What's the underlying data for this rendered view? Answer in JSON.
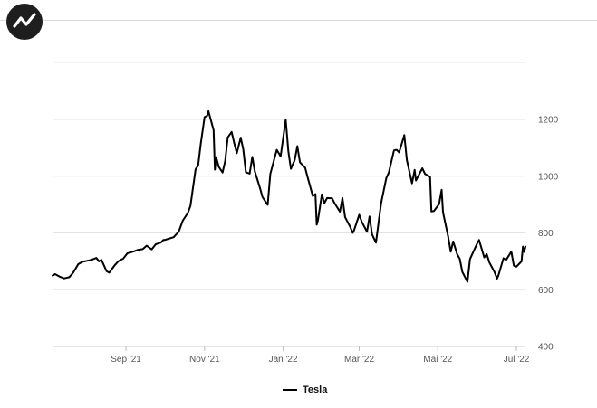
{
  "brand": {
    "logo_icon": "stock-trend-icon",
    "color": "#1e1e1e"
  },
  "chart_data": {
    "type": "line",
    "title": "",
    "xlabel": "",
    "ylabel": "",
    "x_ticks": [
      "Sep '21",
      "Nov '21",
      "Jan '22",
      "Mär '22",
      "Mai '22",
      "Jul '22"
    ],
    "y_ticks": [
      400,
      600,
      800,
      1000,
      1200
    ],
    "ylim": [
      400,
      1200
    ],
    "xlim": [
      "2021-07-06",
      "2022-07-08"
    ],
    "grid": true,
    "legend_position": "bottom-center",
    "series": [
      {
        "name": "Tesla",
        "color": "#000000",
        "points": [
          [
            "2021-07-06",
            650
          ],
          [
            "2021-07-08",
            655
          ],
          [
            "2021-07-12",
            645
          ],
          [
            "2021-07-15",
            640
          ],
          [
            "2021-07-19",
            644
          ],
          [
            "2021-07-22",
            660
          ],
          [
            "2021-07-26",
            690
          ],
          [
            "2021-07-29",
            698
          ],
          [
            "2021-08-02",
            702
          ],
          [
            "2021-08-05",
            705
          ],
          [
            "2021-08-09",
            712
          ],
          [
            "2021-08-11",
            700
          ],
          [
            "2021-08-13",
            705
          ],
          [
            "2021-08-17",
            665
          ],
          [
            "2021-08-19",
            660
          ],
          [
            "2021-08-23",
            685
          ],
          [
            "2021-08-26",
            700
          ],
          [
            "2021-08-30",
            710
          ],
          [
            "2021-09-02",
            728
          ],
          [
            "2021-09-07",
            735
          ],
          [
            "2021-09-10",
            740
          ],
          [
            "2021-09-14",
            743
          ],
          [
            "2021-09-17",
            755
          ],
          [
            "2021-09-21",
            742
          ],
          [
            "2021-09-24",
            760
          ],
          [
            "2021-09-28",
            766
          ],
          [
            "2021-09-30",
            775
          ],
          [
            "2021-10-01",
            775
          ],
          [
            "2021-10-05",
            781
          ],
          [
            "2021-10-08",
            785
          ],
          [
            "2021-10-12",
            805
          ],
          [
            "2021-10-15",
            843
          ],
          [
            "2021-10-19",
            870
          ],
          [
            "2021-10-21",
            895
          ],
          [
            "2021-10-25",
            1024
          ],
          [
            "2021-10-27",
            1037
          ],
          [
            "2021-10-29",
            1114
          ],
          [
            "2021-11-01",
            1208
          ],
          [
            "2021-11-03",
            1213
          ],
          [
            "2021-11-04",
            1229
          ],
          [
            "2021-11-08",
            1162
          ],
          [
            "2021-11-09",
            1023
          ],
          [
            "2021-11-10",
            1067
          ],
          [
            "2021-11-12",
            1033
          ],
          [
            "2021-11-15",
            1013
          ],
          [
            "2021-11-17",
            1054
          ],
          [
            "2021-11-19",
            1137
          ],
          [
            "2021-11-22",
            1156
          ],
          [
            "2021-11-24",
            1116
          ],
          [
            "2021-11-26",
            1081
          ],
          [
            "2021-11-29",
            1136
          ],
          [
            "2021-12-01",
            1095
          ],
          [
            "2021-12-03",
            1014
          ],
          [
            "2021-12-06",
            1009
          ],
          [
            "2021-12-08",
            1068
          ],
          [
            "2021-12-10",
            1017
          ],
          [
            "2021-12-14",
            958
          ],
          [
            "2021-12-16",
            926
          ],
          [
            "2021-12-20",
            899
          ],
          [
            "2021-12-22",
            1008
          ],
          [
            "2021-12-27",
            1093
          ],
          [
            "2021-12-30",
            1070
          ],
          [
            "2022-01-03",
            1199
          ],
          [
            "2022-01-05",
            1088
          ],
          [
            "2022-01-07",
            1026
          ],
          [
            "2022-01-10",
            1058
          ],
          [
            "2022-01-12",
            1106
          ],
          [
            "2022-01-14",
            1049
          ],
          [
            "2022-01-18",
            1030
          ],
          [
            "2022-01-20",
            996
          ],
          [
            "2022-01-24",
            930
          ],
          [
            "2022-01-26",
            937
          ],
          [
            "2022-01-27",
            829
          ],
          [
            "2022-01-28",
            846
          ],
          [
            "2022-01-31",
            936
          ],
          [
            "2022-02-02",
            905
          ],
          [
            "2022-02-04",
            923
          ],
          [
            "2022-02-08",
            922
          ],
          [
            "2022-02-10",
            904
          ],
          [
            "2022-02-14",
            875
          ],
          [
            "2022-02-16",
            923
          ],
          [
            "2022-02-18",
            856
          ],
          [
            "2022-02-22",
            821
          ],
          [
            "2022-02-24",
            800
          ],
          [
            "2022-02-25",
            809
          ],
          [
            "2022-03-01",
            864
          ],
          [
            "2022-03-03",
            839
          ],
          [
            "2022-03-07",
            804
          ],
          [
            "2022-03-09",
            858
          ],
          [
            "2022-03-11",
            795
          ],
          [
            "2022-03-14",
            766
          ],
          [
            "2022-03-16",
            837
          ],
          [
            "2022-03-18",
            905
          ],
          [
            "2022-03-22",
            993
          ],
          [
            "2022-03-24",
            1013
          ],
          [
            "2022-03-28",
            1091
          ],
          [
            "2022-03-30",
            1093
          ],
          [
            "2022-04-01",
            1084
          ],
          [
            "2022-04-05",
            1145
          ],
          [
            "2022-04-07",
            1057
          ],
          [
            "2022-04-11",
            975
          ],
          [
            "2022-04-13",
            1022
          ],
          [
            "2022-04-14",
            985
          ],
          [
            "2022-04-19",
            1028
          ],
          [
            "2022-04-21",
            1008
          ],
          [
            "2022-04-25",
            998
          ],
          [
            "2022-04-26",
            876
          ],
          [
            "2022-04-28",
            877
          ],
          [
            "2022-05-02",
            902
          ],
          [
            "2022-05-04",
            952
          ],
          [
            "2022-05-05",
            873
          ],
          [
            "2022-05-09",
            787
          ],
          [
            "2022-05-11",
            734
          ],
          [
            "2022-05-13",
            770
          ],
          [
            "2022-05-16",
            725
          ],
          [
            "2022-05-18",
            709
          ],
          [
            "2022-05-20",
            663
          ],
          [
            "2022-05-24",
            628
          ],
          [
            "2022-05-26",
            708
          ],
          [
            "2022-05-31",
            758
          ],
          [
            "2022-06-02",
            775
          ],
          [
            "2022-06-06",
            714
          ],
          [
            "2022-06-08",
            725
          ],
          [
            "2022-06-10",
            696
          ],
          [
            "2022-06-14",
            662
          ],
          [
            "2022-06-16",
            639
          ],
          [
            "2022-06-17",
            650
          ],
          [
            "2022-06-21",
            711
          ],
          [
            "2022-06-23",
            705
          ],
          [
            "2022-06-27",
            734
          ],
          [
            "2022-06-29",
            685
          ],
          [
            "2022-07-01",
            681
          ],
          [
            "2022-07-05",
            700
          ],
          [
            "2022-07-06",
            752
          ],
          [
            "2022-07-07",
            733
          ],
          [
            "2022-07-08",
            752
          ]
        ]
      }
    ]
  }
}
